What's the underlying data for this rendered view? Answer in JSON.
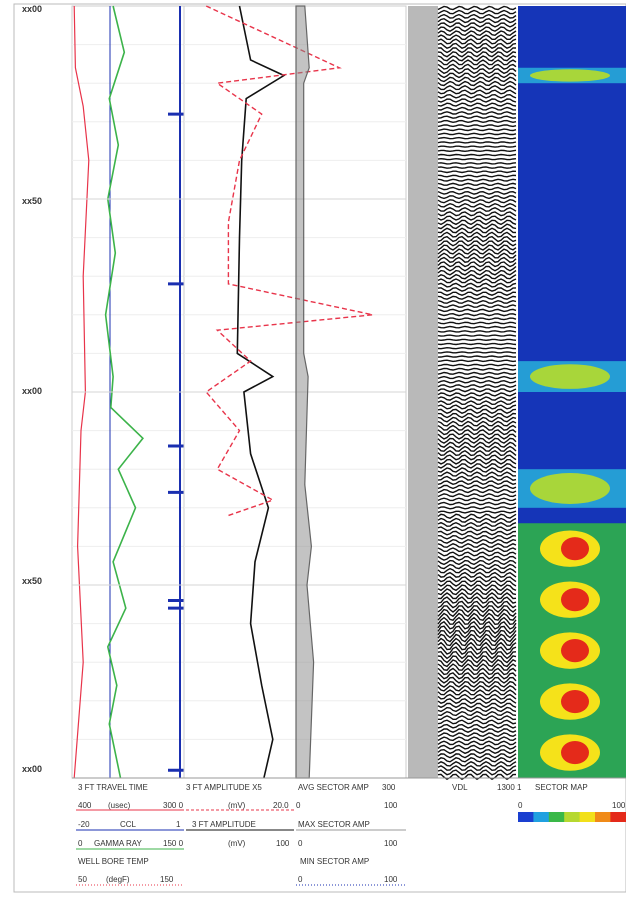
{
  "colors": {
    "gamma_ray": "#3cb34a",
    "travel_time": "#e8344a",
    "amplitude_3ft": "#111111",
    "amplitude_x5": "#e8344a",
    "cbl": "#1a2fb0",
    "sector_avg": "#666666",
    "map_background": "#1535b8"
  },
  "depth_labels": [
    "xx00",
    "xx50",
    "xx00",
    "xx50",
    "xx00"
  ],
  "header": {
    "row1": {
      "t1": "3 FT TRAVEL TIME",
      "t2": "3 FT AMPLITUDE X5",
      "t3": "AVG SECTOR AMP",
      "t4": "300",
      "t5": "VDL",
      "t6": "1300 1",
      "t7": "SECTOR MAP"
    },
    "row2": {
      "a": "400",
      "b": "(usec)",
      "c": "300 0",
      "d": "(mV)",
      "e": "20.0",
      "f": "0",
      "g": "100",
      "h": "0",
      "i": "100"
    },
    "row3": {
      "a": "-20",
      "b": "CCL",
      "c": "1",
      "d": "3 FT AMPLITUDE",
      "e": "MAX SECTOR AMP"
    },
    "row4": {
      "a": "0",
      "b": "GAMMA RAY",
      "c": "150 0",
      "d": "(mV)",
      "e": "100",
      "f": "0",
      "g": "100"
    },
    "row5": {
      "a": "WELL BORE TEMP",
      "b": "MIN SECTOR AMP"
    },
    "row6": {
      "a": "50",
      "b": "(degF)",
      "c": "150",
      "d": "0",
      "e": "100"
    }
  },
  "chart_data": {
    "type": "line",
    "y_axis": "depth",
    "depth_tick_labels": [
      "xx00",
      "xx50",
      "xx00",
      "xx50",
      "xx00"
    ],
    "series": [
      {
        "name": "GAMMA RAY",
        "range": [
          0,
          150
        ],
        "unit": "",
        "depth_frac": [
          0,
          0.06,
          0.12,
          0.18,
          0.25,
          0.32,
          0.4,
          0.48,
          0.52,
          0.56,
          0.6,
          0.65,
          0.72,
          0.78,
          0.83,
          0.88,
          0.93,
          1.0
        ],
        "values": [
          55,
          70,
          50,
          62,
          48,
          58,
          45,
          55,
          52,
          95,
          62,
          85,
          55,
          72,
          48,
          60,
          50,
          65
        ]
      },
      {
        "name": "3 FT TRAVEL TIME",
        "range": [
          400,
          300
        ],
        "unit": "(usec)",
        "depth_frac": [
          0,
          0.08,
          0.13,
          0.2,
          0.35,
          0.5,
          0.55,
          0.7,
          0.85,
          1.0
        ],
        "values": [
          398,
          397,
          390,
          385,
          390,
          388,
          392,
          395,
          390,
          398
        ]
      },
      {
        "name": "3 FT AMPLITUDE",
        "range": [
          0,
          100
        ],
        "unit": "(mV)",
        "depth_frac": [
          0,
          0.07,
          0.09,
          0.12,
          0.2,
          0.3,
          0.45,
          0.48,
          0.5,
          0.58,
          0.65,
          0.72,
          0.8,
          0.88,
          0.95,
          1.0
        ],
        "values": [
          25,
          30,
          45,
          28,
          26,
          25,
          24,
          40,
          27,
          30,
          38,
          32,
          30,
          35,
          40,
          36
        ]
      },
      {
        "name": "3 FT AMPLITUDE X5",
        "range": [
          0,
          20.0
        ],
        "unit": "(mV)",
        "depth_frac": [
          0,
          0.08,
          0.1,
          0.14,
          0.2,
          0.28,
          0.36,
          0.4,
          0.42,
          0.46,
          0.5,
          0.55,
          0.6,
          0.64,
          0.66
        ],
        "values": [
          2,
          14,
          3,
          7,
          5,
          4,
          4,
          17,
          3,
          6,
          2,
          5,
          3,
          8,
          4
        ]
      },
      {
        "name": "AVG SECTOR AMP",
        "range": [
          0,
          100
        ],
        "unit": "",
        "depth_frac": [
          0,
          0.08,
          0.1,
          0.45,
          0.48,
          0.62,
          0.7,
          0.75,
          0.85,
          1.0
        ],
        "values": [
          8,
          12,
          7,
          7,
          11,
          8,
          14,
          10,
          16,
          12
        ]
      }
    ],
    "ccl_collar_depth_frac": [
      0.14,
      0.36,
      0.57,
      0.63,
      0.77,
      0.78,
      0.99
    ],
    "sector_map": {
      "name": "SECTOR MAP",
      "scale": [
        0,
        100
      ],
      "bond_zones_depth_frac": [
        [
          0.08,
          0.1
        ],
        [
          0.46,
          0.5
        ],
        [
          0.6,
          0.65
        ],
        [
          0.67,
          1.0
        ]
      ]
    }
  }
}
